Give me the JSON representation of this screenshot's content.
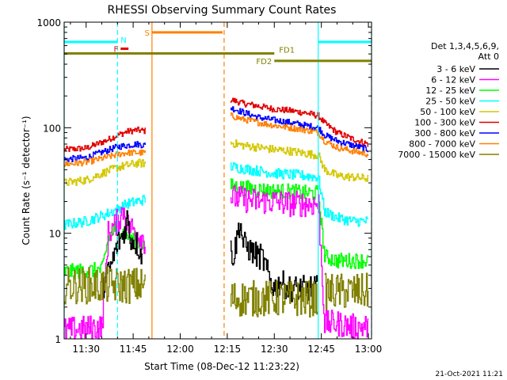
{
  "chart_data": {
    "type": "line",
    "title": "RHESSI Observing Summary Count Rates",
    "xlabel": "Start Time (08-Dec-12 11:23:22)",
    "ylabel": "Count Rate (s⁻¹ detector⁻¹)",
    "x_range_minutes": [
      23.0,
      121.0
    ],
    "x_ticks": [
      {
        "label": "11:30",
        "min": 30
      },
      {
        "label": "11:45",
        "min": 45
      },
      {
        "label": "12:00",
        "min": 60
      },
      {
        "label": "12:15",
        "min": 75
      },
      {
        "label": "12:30",
        "min": 90
      },
      {
        "label": "12:45",
        "min": 105
      },
      {
        "label": "13:00",
        "min": 120
      }
    ],
    "ylim": [
      1,
      1000
    ],
    "yscale": "log",
    "y_ticks": [
      {
        "label": "1",
        "v": 1
      },
      {
        "label": "10",
        "v": 10
      },
      {
        "label": "100",
        "v": 100
      },
      {
        "label": "1000",
        "v": 1000
      }
    ],
    "legend": {
      "header": [
        "Det 1,3,4,5,6,9,",
        "Att 0"
      ],
      "placement": "right",
      "entries": [
        {
          "label": "3 - 6 keV",
          "color": "#000000"
        },
        {
          "label": "6 - 12 keV",
          "color": "#ff00ff"
        },
        {
          "label": "12 - 25 keV",
          "color": "#00ff00"
        },
        {
          "label": "25 - 50 keV",
          "color": "#00ffff"
        },
        {
          "label": "50 - 100 keV",
          "color": "#d4c800"
        },
        {
          "label": "100 - 300 keV",
          "color": "#e00000"
        },
        {
          "label": "300 - 800 keV",
          "color": "#0000ff"
        },
        {
          "label": "800 - 7000 keV",
          "color": "#ff8000"
        },
        {
          "label": "7000 - 15000 keV",
          "color": "#808000"
        }
      ]
    },
    "series": [
      {
        "color": "#e00000",
        "segments": [
          {
            "x": [
              23,
              30,
              36,
              40,
              43,
              46,
              49
            ],
            "y": [
              62,
              64,
              75,
              85,
              92,
              95,
              93
            ]
          },
          {
            "x": [
              76,
              80,
              85,
              90,
              95,
              100,
              104,
              106,
              110,
              115,
              120
            ],
            "y": [
              185,
              170,
              160,
              150,
              145,
              138,
              130,
              110,
              90,
              78,
              70
            ]
          }
        ]
      },
      {
        "color": "#0000ff",
        "segments": [
          {
            "x": [
              23,
              30,
              36,
              40,
              43,
              46,
              49
            ],
            "y": [
              50,
              52,
              60,
              66,
              68,
              70,
              68
            ]
          },
          {
            "x": [
              76,
              80,
              85,
              90,
              95,
              100,
              104,
              106,
              110,
              115,
              120
            ],
            "y": [
              155,
              140,
              125,
              118,
              112,
              105,
              100,
              85,
              75,
              68,
              62
            ]
          }
        ]
      },
      {
        "color": "#ff8000",
        "segments": [
          {
            "x": [
              23,
              30,
              36,
              40,
              43,
              46,
              49
            ],
            "y": [
              45,
              47,
              52,
              56,
              58,
              58,
              58
            ]
          },
          {
            "x": [
              76,
              80,
              85,
              90,
              95,
              100,
              104,
              106,
              110,
              115,
              120
            ],
            "y": [
              130,
              120,
              112,
              105,
              100,
              95,
              90,
              75,
              65,
              60,
              56
            ]
          }
        ]
      },
      {
        "color": "#d4c800",
        "segments": [
          {
            "x": [
              23,
              30,
              36,
              40,
              43,
              46,
              49
            ],
            "y": [
              30,
              32,
              38,
              42,
              44,
              46,
              46
            ]
          },
          {
            "x": [
              76,
              80,
              85,
              90,
              95,
              100,
              104,
              106,
              110,
              115,
              120
            ],
            "y": [
              72,
              68,
              65,
              62,
              60,
              57,
              55,
              40,
              35,
              34,
              33
            ]
          }
        ]
      },
      {
        "color": "#00ffff",
        "segments": [
          {
            "x": [
              23,
              30,
              36,
              40,
              43,
              46,
              49
            ],
            "y": [
              12,
              13,
              15,
              17,
              19,
              20,
              21
            ]
          },
          {
            "x": [
              76,
              80,
              85,
              90,
              95,
              100,
              104,
              106,
              110,
              115,
              120
            ],
            "y": [
              43,
              41,
              39,
              37,
              36,
              35,
              34,
              16,
              14,
              13,
              13
            ]
          }
        ]
      },
      {
        "color": "#00ff00",
        "segments": [
          {
            "x": [
              23,
              35,
              37,
              40,
              42,
              45,
              48,
              49
            ],
            "y": [
              4.3,
              4.5,
              9,
              12,
              10,
              9,
              8,
              7
            ]
          },
          {
            "x": [
              76,
              80,
              85,
              90,
              95,
              100,
              104,
              106,
              110,
              115,
              120
            ],
            "y": [
              28,
              27,
              26,
              25,
              25,
              24,
              24,
              6,
              5.5,
              5.5,
              5.5
            ]
          }
        ]
      },
      {
        "color": "#ff00ff",
        "segments": [
          {
            "x": [
              23,
              35,
              37,
              40,
              42,
              43,
              45,
              48,
              49
            ],
            "y": [
              1.2,
              1.3,
              10,
              13,
              17,
              12,
              11,
              9,
              8
            ]
          },
          {
            "x": [
              76,
              80,
              85,
              90,
              95,
              100,
              104,
              106,
              110,
              115,
              120
            ],
            "y": [
              22,
              21,
              20,
              20,
              19,
              19,
              19,
              1.4,
              1.4,
              1.3,
              1.3
            ]
          }
        ]
      },
      {
        "color": "#000000",
        "segments": [
          {
            "x": [
              35,
              38,
              40,
              42,
              43,
              44,
              46,
              48
            ],
            "y": [
              3,
              5,
              8,
              10,
              14,
              9,
              8,
              6
            ]
          },
          {
            "x": [
              76,
              77,
              78,
              79,
              80,
              82,
              85,
              86,
              88,
              90,
              92,
              94,
              96,
              98,
              100,
              103,
              104
            ],
            "y": [
              7,
              6,
              9,
              13,
              8,
              7,
              6,
              6,
              4,
              3,
              3.5,
              3,
              3,
              3,
              3,
              3,
              3
            ]
          }
        ]
      },
      {
        "color": "#808000",
        "segments": [
          {
            "x": [
              23,
              49
            ],
            "y": [
              3.2,
              3.2
            ]
          },
          {
            "x": [
              76,
              104
            ],
            "y": [
              2.4,
              2.4
            ]
          },
          {
            "x": [
              106,
              120
            ],
            "y": [
              2.8,
              2.8
            ]
          }
        ]
      }
    ],
    "noise_amplitudes": [
      0.06,
      0.06,
      0.06,
      0.08,
      0.1,
      0.15,
      0.25,
      0.25,
      0.35
    ],
    "annotations": {
      "vertical_lines": [
        {
          "min": 23.0,
          "color": "#00ffff",
          "style": "solid"
        },
        {
          "min": 40.0,
          "color": "#00ffff",
          "style": "dashed"
        },
        {
          "min": 51.0,
          "color": "#ff8000",
          "style": "solid"
        },
        {
          "min": 74.0,
          "color": "#ff8000",
          "style": "dashed"
        },
        {
          "min": 104.0,
          "color": "#00ffff",
          "style": "solid"
        },
        {
          "min": 121.0,
          "color": "#00ffff",
          "style": "dashed"
        }
      ],
      "flag_bars": [
        {
          "label": "N",
          "x0": 23.0,
          "x1": 40.0,
          "y": 650,
          "color": "#00ffff",
          "label_at": "end"
        },
        {
          "label": "F",
          "x0": 41.0,
          "x1": 43.5,
          "y": 560,
          "color": "#e00000",
          "label_at": "start"
        },
        {
          "label": "S",
          "x0": 51.0,
          "x1": 73.5,
          "y": 800,
          "color": "#ff8000",
          "label_at": "start"
        },
        {
          "label": "",
          "x0": 104.0,
          "x1": 121.0,
          "y": 650,
          "color": "#00ffff",
          "label_at": "none"
        },
        {
          "label": "FD1",
          "x0": 23.0,
          "x1": 90.0,
          "y": 505,
          "color": "#808000",
          "label_at": "end_above"
        },
        {
          "label": "FD2",
          "x0": 90.0,
          "x1": 121.0,
          "y": 430,
          "color": "#808000",
          "label_at": "start"
        }
      ]
    },
    "footer_date": "21-Oct-2021 11:21",
    "grid": false
  }
}
